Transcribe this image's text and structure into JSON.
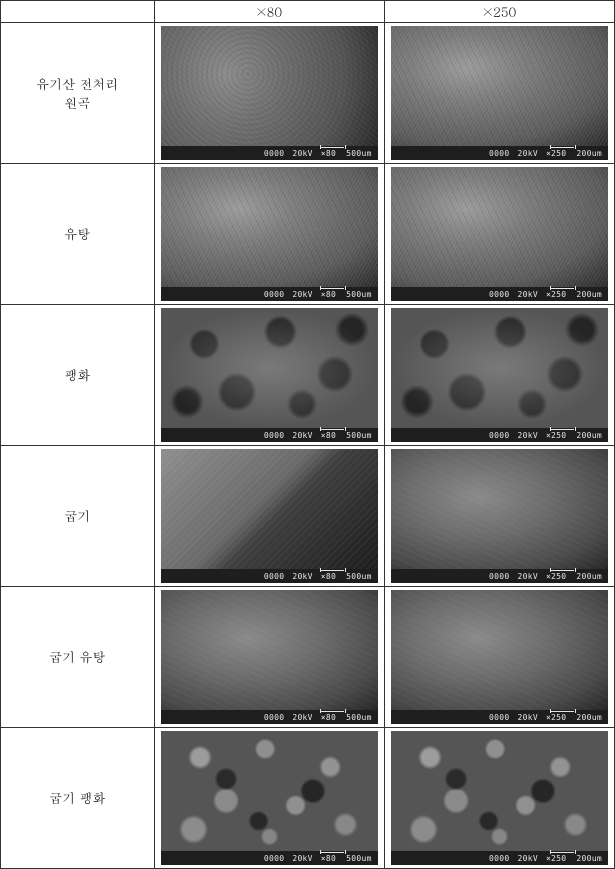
{
  "header": {
    "blank": "",
    "col_a": "×80",
    "col_b": "×250"
  },
  "sem_bar": {
    "id": "0000",
    "kv": "20kV",
    "mag80": "×80",
    "mag250": "×250",
    "scale80": "500um",
    "scale250": "200um"
  },
  "rows": [
    {
      "label": "유기산 전처리\n원곡",
      "texA": "t-grain",
      "texB": "t-wrinkle"
    },
    {
      "label": "유탕",
      "texA": "t-wrinkle",
      "texB": "t-wrinkle"
    },
    {
      "label": "팽화",
      "texA": "t-porous",
      "texB": "t-porous"
    },
    {
      "label": "굽기",
      "texA": "t-edge",
      "texB": "t-smooth"
    },
    {
      "label": "굽기 유탕",
      "texA": "t-smooth",
      "texB": "t-smooth"
    },
    {
      "label": "굽기 팽화",
      "texA": "t-coarse",
      "texB": "t-coarse"
    }
  ]
}
